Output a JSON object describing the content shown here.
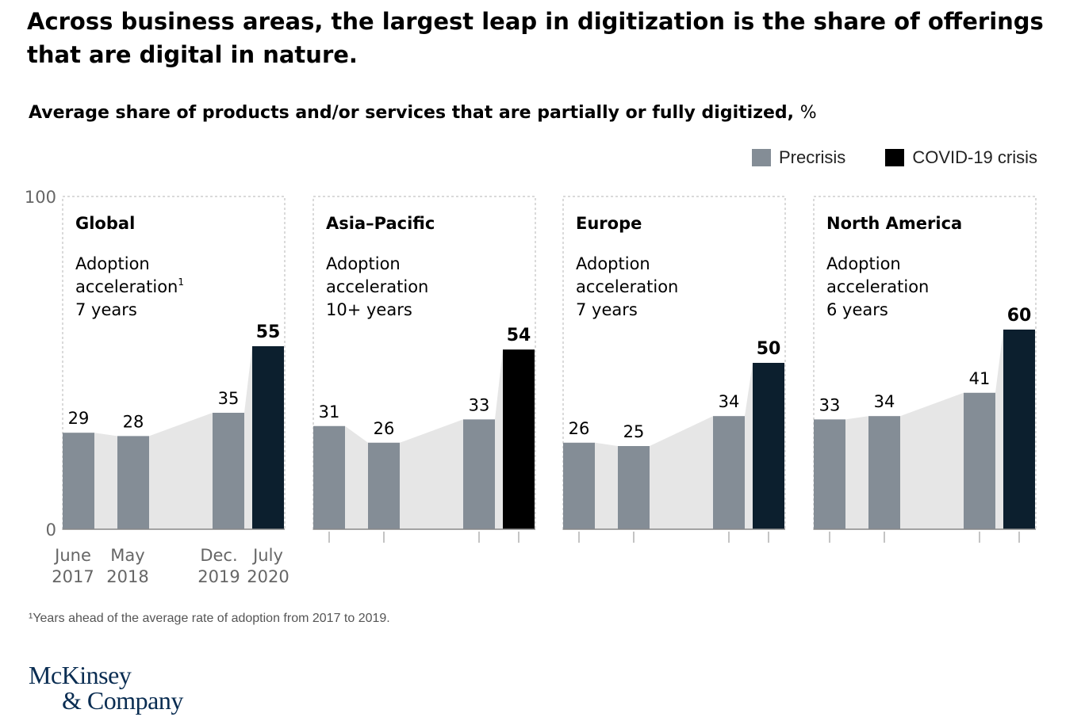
{
  "title": "Across business areas, the largest leap in digitization is the share of offerings that are digital in nature.",
  "subtitle": "Average share of products and/or services that are partially or fully digitized,",
  "subtitle_unit": "%",
  "legend": [
    {
      "label": "Precrisis",
      "color": "#848d96"
    },
    {
      "label": "COVID-19 crisis",
      "color": "#000000"
    }
  ],
  "footnote": "¹Years ahead of the average rate of adoption from 2017 to 2019.",
  "logo": {
    "line1": "McKinsey",
    "line2": "& Company"
  },
  "colors": {
    "precrisis": "#848d96",
    "covid": "#0c1f2e",
    "area": "#e6e6e6",
    "axis": "#888888"
  },
  "chart_data": {
    "type": "bar",
    "y_ticks": [
      "100",
      "0"
    ],
    "ylim": [
      0,
      100
    ],
    "x_tick_labels": [
      [
        "June",
        "2017"
      ],
      [
        "May",
        "2018"
      ],
      [
        "Dec.",
        "2019"
      ],
      [
        "July",
        "2020"
      ]
    ],
    "panels": [
      {
        "region": "Global",
        "caption": [
          "Adoption",
          "acceleration¹",
          "7 years"
        ],
        "values": [
          29,
          28,
          35,
          55
        ],
        "last_color": "#0c1f2e"
      },
      {
        "region": "Asia–Pacific",
        "caption": [
          "Adoption",
          "acceleration",
          "10+ years"
        ],
        "values": [
          31,
          26,
          33,
          54
        ],
        "last_color": "#000000"
      },
      {
        "region": "Europe",
        "caption": [
          "Adoption",
          "acceleration",
          "7 years"
        ],
        "values": [
          26,
          25,
          34,
          50
        ],
        "last_color": "#0c1f2e"
      },
      {
        "region": "North America",
        "caption": [
          "Adoption",
          "acceleration",
          "6 years"
        ],
        "values": [
          33,
          34,
          41,
          60
        ],
        "last_color": "#0c1f2e"
      }
    ]
  }
}
